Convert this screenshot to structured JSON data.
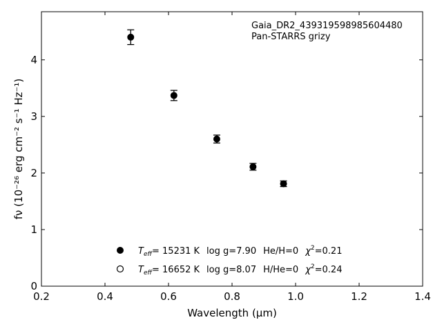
{
  "chart_data": {
    "type": "scatter",
    "xlabel": "Wavelength (μm)",
    "ylabel": "fν (10⁻²⁶ erg cm⁻² s⁻¹ Hz⁻¹)",
    "xlim": [
      0.2,
      1.4
    ],
    "ylim": [
      0,
      4.85
    ],
    "xticks": [
      0.2,
      0.4,
      0.6,
      0.8,
      1.0,
      1.2,
      1.4
    ],
    "xtick_labels": [
      "0.2",
      "0.4",
      "0.6",
      "0.8",
      "1.0",
      "1.2",
      "1.4"
    ],
    "yticks": [
      0,
      1,
      2,
      3,
      4
    ],
    "ytick_labels": [
      "0",
      "1",
      "2",
      "3",
      "4"
    ],
    "grid": false,
    "annotation_lines": [
      "Gaia_DR2_439319598985604480",
      "Pan-STARRS grizy"
    ],
    "points": [
      {
        "x": 0.481,
        "y": 4.4,
        "yerr": 0.13
      },
      {
        "x": 0.617,
        "y": 3.37,
        "yerr": 0.09
      },
      {
        "x": 0.752,
        "y": 2.6,
        "yerr": 0.07
      },
      {
        "x": 0.866,
        "y": 2.11,
        "yerr": 0.06
      },
      {
        "x": 0.962,
        "y": 1.81,
        "yerr": 0.05
      }
    ],
    "legend": [
      {
        "marker": "filled-circle",
        "teff": "15231 K",
        "logg": "log g=7.90",
        "comp": "He/H=0",
        "chi2": "=0.21"
      },
      {
        "marker": "open-circle",
        "teff": "16652 K",
        "logg": "log g=8.07",
        "comp": "H/He=0",
        "chi2": "=0.24"
      }
    ],
    "legend_placement": "lower-center"
  }
}
